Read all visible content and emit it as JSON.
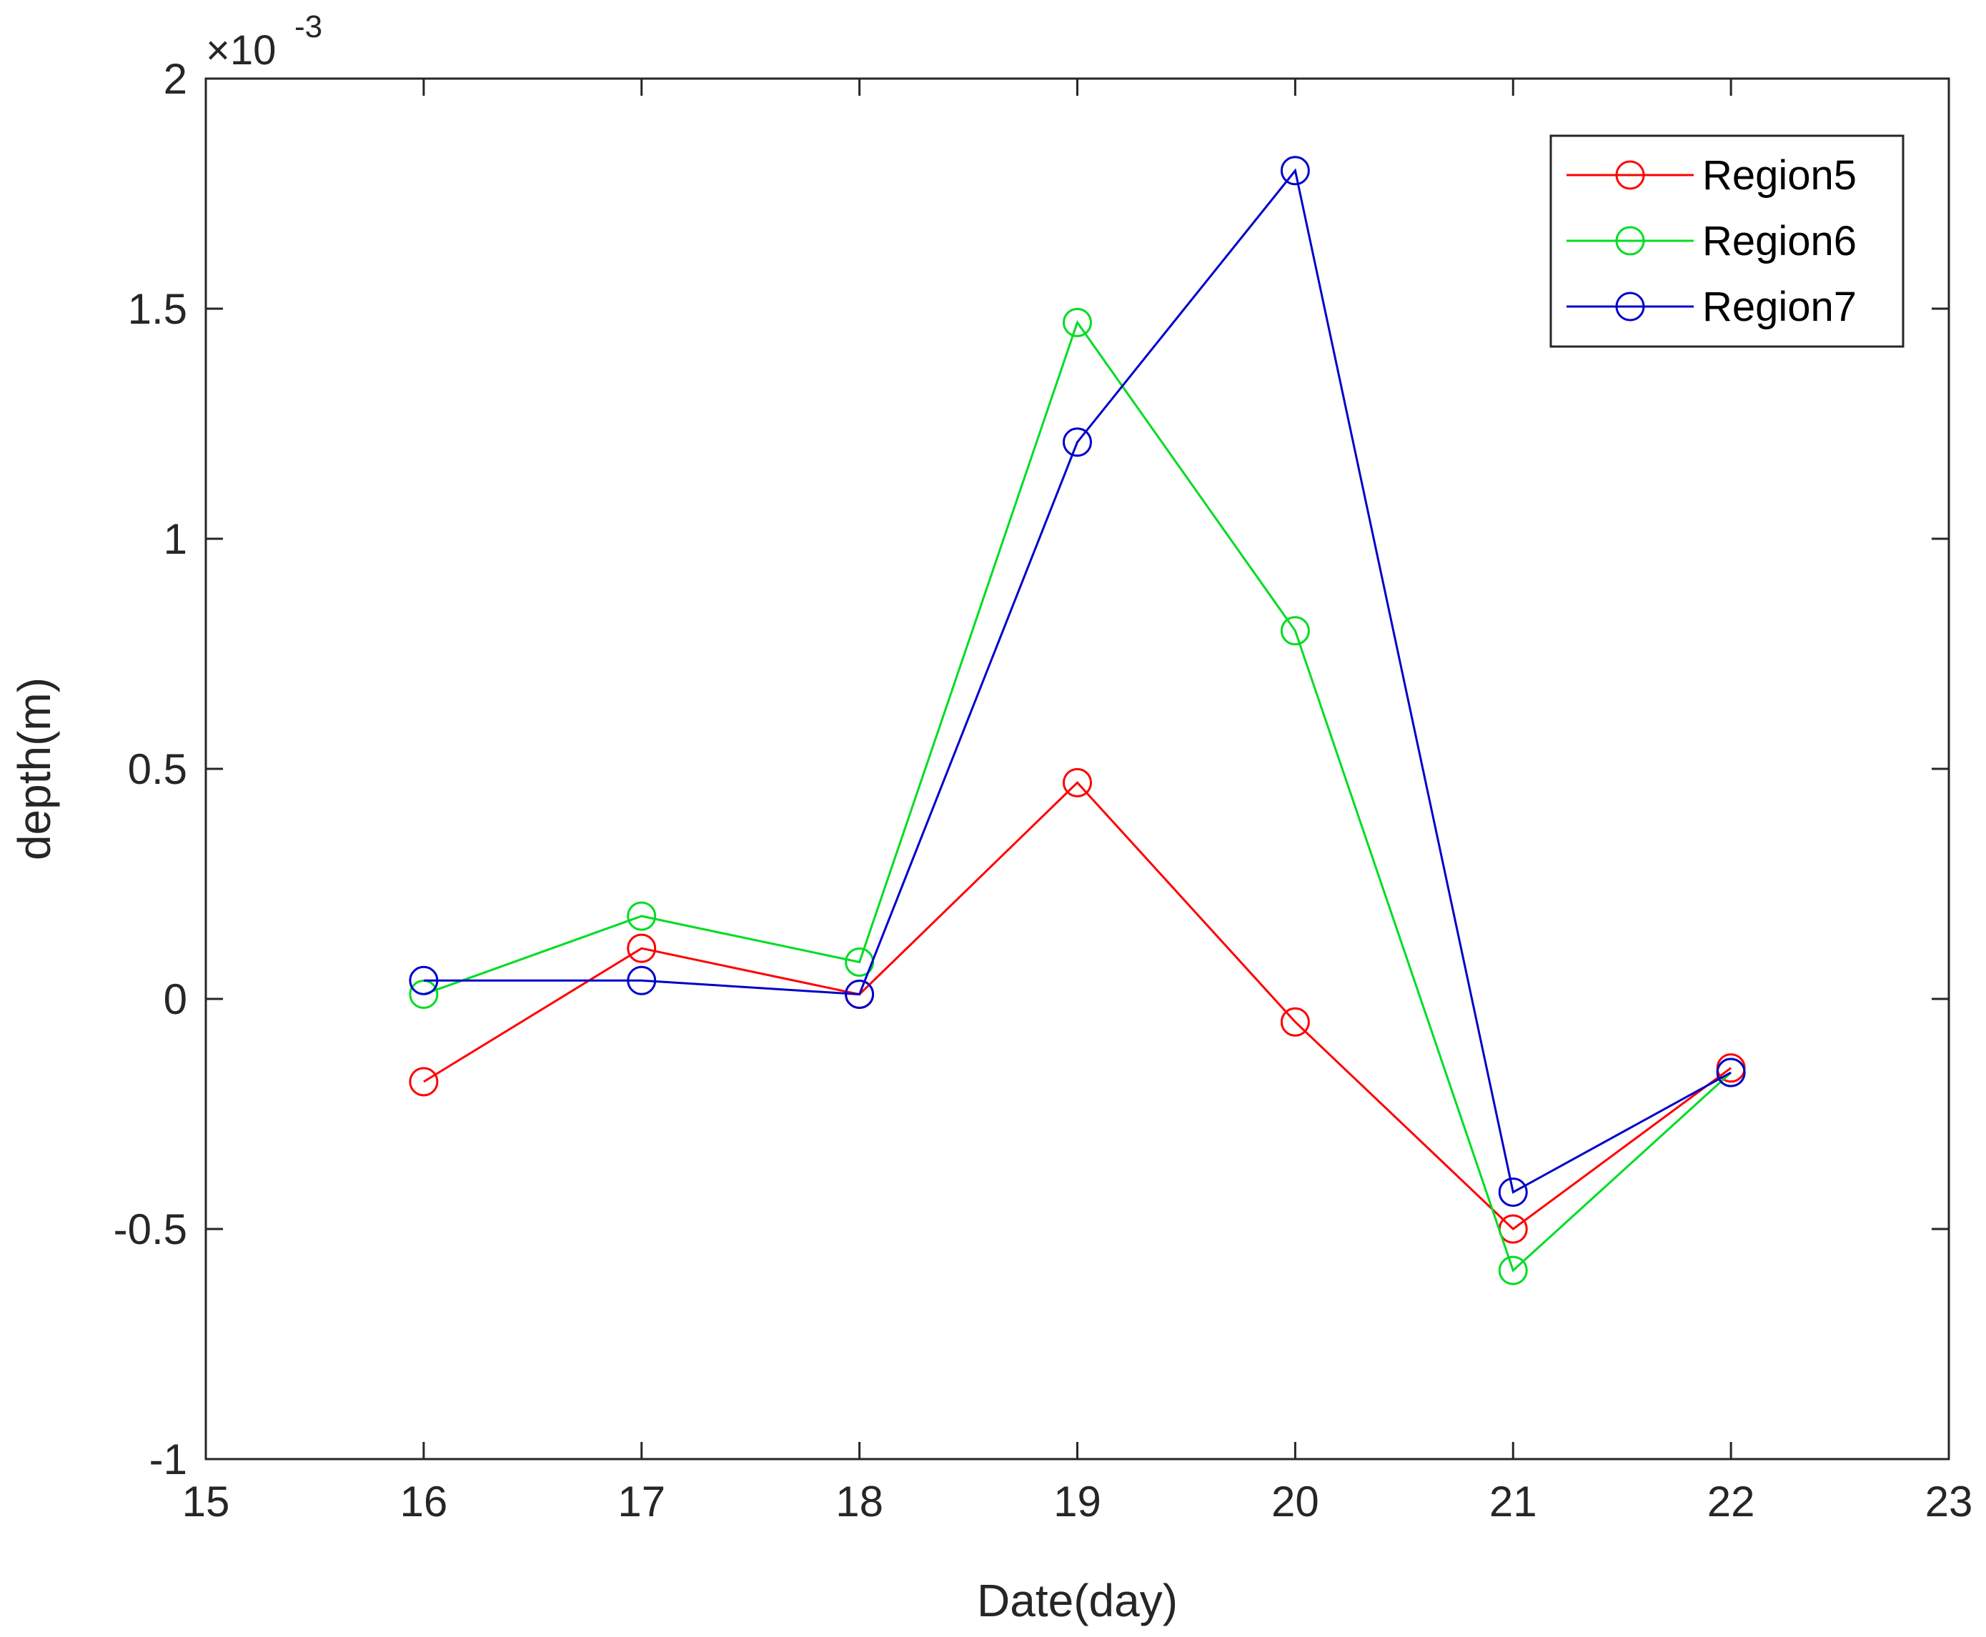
{
  "chart_data": {
    "type": "line",
    "title": "",
    "xlabel": "Date(day)",
    "ylabel": "depth(m)",
    "y_exponent": {
      "base": "×10",
      "power": "-3"
    },
    "xlim": [
      15,
      23
    ],
    "ylim": [
      -1,
      2
    ],
    "xticks": [
      15,
      16,
      17,
      18,
      19,
      20,
      21,
      22,
      23
    ],
    "xtick_labels": [
      "15",
      "16",
      "17",
      "18",
      "19",
      "20",
      "21",
      "22",
      "23"
    ],
    "yticks": [
      -1,
      -0.5,
      0,
      0.5,
      1,
      1.5,
      2
    ],
    "ytick_labels": [
      "-1",
      "-0.5",
      "0",
      "0.5",
      "1",
      "1.5",
      "2"
    ],
    "grid": false,
    "legend_position": "top-right",
    "marker": "circle",
    "x": [
      16,
      17,
      18,
      19,
      20,
      21,
      22
    ],
    "series": [
      {
        "name": "Region5",
        "color": "#ff0000",
        "values": [
          -0.18,
          0.11,
          0.01,
          0.47,
          -0.05,
          -0.5,
          -0.15
        ]
      },
      {
        "name": "Region6",
        "color": "#00dd22",
        "values": [
          0.01,
          0.18,
          0.08,
          1.47,
          0.8,
          -0.59,
          -0.16
        ]
      },
      {
        "name": "Region7",
        "color": "#0000cc",
        "values": [
          0.04,
          0.04,
          0.01,
          1.21,
          1.8,
          -0.42,
          -0.16
        ]
      }
    ]
  }
}
